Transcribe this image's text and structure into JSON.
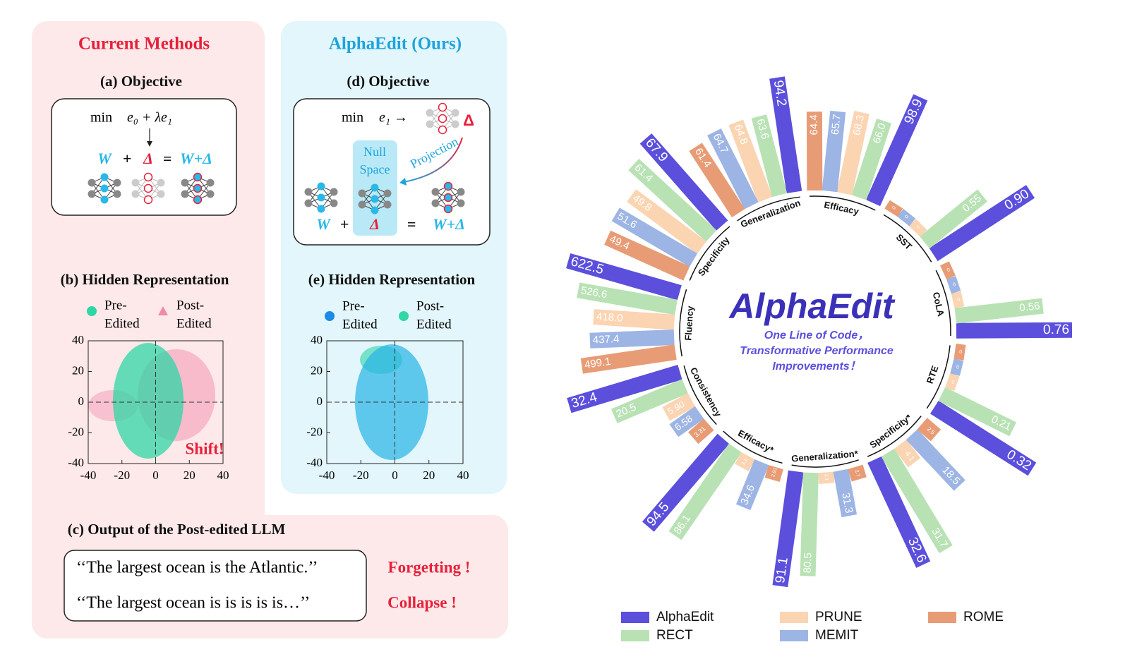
{
  "current_methods": {
    "title": "Current Methods",
    "objective": {
      "title": "(a) Objective",
      "min": "min",
      "formula": "e₀ + λe₁",
      "equation": [
        "W",
        "+",
        "Δ",
        "=",
        "W+Δ"
      ]
    },
    "hidden": {
      "title": "(b) Hidden Representation",
      "pre": [
        "Pre-",
        "Edited"
      ],
      "post": [
        "Post-",
        "Edited"
      ],
      "annotation": "Shift!",
      "xlim": [
        -40,
        40
      ],
      "ylim": [
        -40,
        40
      ],
      "xticks": [
        -40,
        -20,
        0,
        20,
        40
      ],
      "yticks": [
        -40,
        -20,
        0,
        20,
        40
      ]
    },
    "output": {
      "title": "(c) Output of the Post-edited LLM",
      "lines": [
        "‘‘The largest ocean is the Atlantic.’’",
        "‘‘The largest ocean is is is is is…’’"
      ],
      "verdicts": [
        "Forgetting !",
        "Collapse !"
      ]
    }
  },
  "alphaedit": {
    "title": "AlphaEdit (Ours)",
    "objective": {
      "title": "(d) Objective",
      "min": "min",
      "formula": "e₁ →",
      "delta": "Δ",
      "null_space": [
        "Null",
        "Space"
      ],
      "projection": "Projection",
      "equation": [
        "W",
        "+",
        "Δ",
        "=",
        "W+Δ"
      ]
    },
    "hidden": {
      "title": "(e) Hidden Representation",
      "pre": [
        "Pre-",
        "Edited"
      ],
      "post": [
        "Post-",
        "Edited"
      ],
      "xlim": [
        -40,
        40
      ],
      "ylim": [
        -40,
        40
      ],
      "xticks": [
        -40,
        -20,
        0,
        20,
        40
      ],
      "yticks": [
        -40,
        -20,
        0,
        20,
        40
      ]
    }
  },
  "chart_data": {
    "type": "radial_bar",
    "title": "AlphaEdit",
    "subtitle": [
      "One Line of Code，",
      "Transformative Performance",
      "Improvements！"
    ],
    "categories": [
      "Efficacy",
      "SST",
      "CoLA",
      "RTE",
      "Specificity*",
      "Generalization*",
      "Efficacy*",
      "Consistency",
      "Fluency",
      "Specificity",
      "Generalization"
    ],
    "series": [
      {
        "name": "AlphaEdit",
        "color": "#5b4fdc",
        "values": [
          98.9,
          0.9,
          0.76,
          0.32,
          32.6,
          91.1,
          94.5,
          32.4,
          622.5,
          67.9,
          94.2
        ],
        "value_labels": [
          "98.9",
          "0.90",
          "0.76",
          "0.32",
          "32.6",
          "91.1",
          "94.5",
          "32.4",
          "622.5",
          "67.9",
          "94.2"
        ]
      },
      {
        "name": "RECT",
        "color": "#b8e2b4",
        "values": [
          66.0,
          0.55,
          0.56,
          0.21,
          31.7,
          80.5,
          86.1,
          20.5,
          526.6,
          61.4,
          63.6
        ],
        "value_labels": [
          "66.0",
          "0.55",
          "0.56",
          "0.21",
          "31.7",
          "80.5",
          "86.1",
          "20.5",
          "526.6",
          "61.4",
          "63.6"
        ]
      },
      {
        "name": "PRUNE",
        "color": "#fbd4b2",
        "values": [
          68.3,
          0,
          0,
          0,
          4.1,
          1.1,
          3.1,
          5.9,
          418.0,
          49.8,
          64.8
        ],
        "value_labels": [
          "68.3",
          "0",
          "0",
          "0",
          "4.1",
          "1.1",
          "3.1",
          "5.90",
          "418.0",
          "49.8",
          "64.8"
        ]
      },
      {
        "name": "MEMIT",
        "color": "#9db5e4",
        "values": [
          65.7,
          0,
          0,
          0,
          18.5,
          31.3,
          34.6,
          6.58,
          437.4,
          51.6,
          64.7
        ],
        "value_labels": [
          "65.7",
          "0",
          "0",
          "0",
          "18.5",
          "31.3",
          "34.6",
          "6.58",
          "437.4",
          "51.6",
          "64.7"
        ]
      },
      {
        "name": "ROME",
        "color": "#e89c76",
        "values": [
          64.4,
          0,
          0,
          0,
          2.5,
          2.7,
          2.91,
          3.31,
          499.1,
          49.4,
          61.4
        ],
        "value_labels": [
          "64.4",
          "0",
          "0",
          "0",
          "2.5",
          "2.7",
          "2.91",
          "3.31",
          "499.1",
          "49.4",
          "61.4"
        ]
      }
    ]
  }
}
